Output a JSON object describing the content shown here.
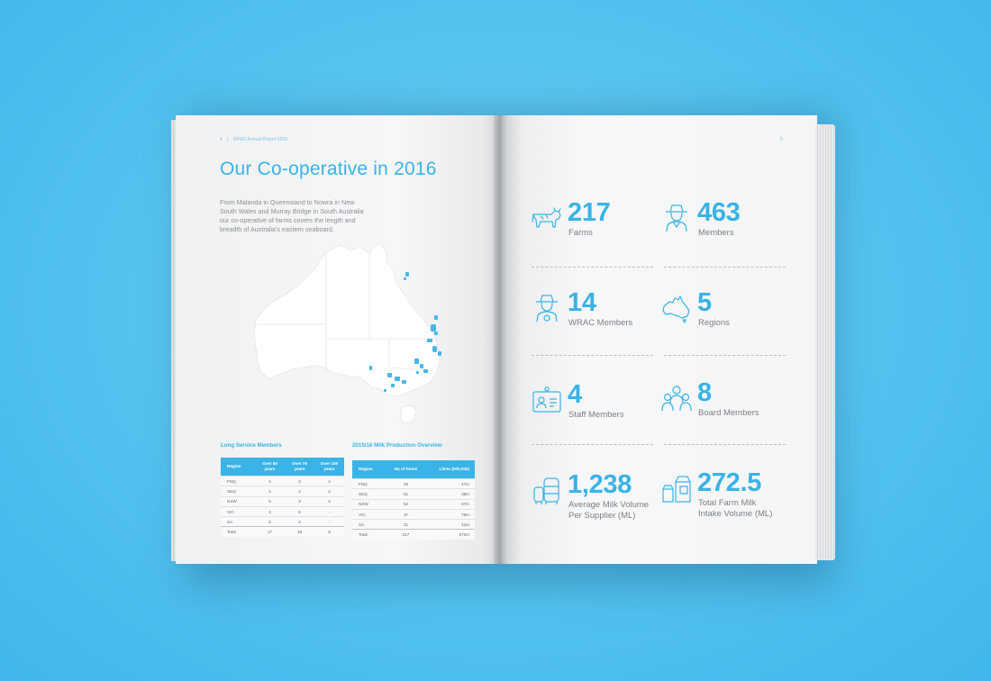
{
  "left_page": {
    "running_header": {
      "page_number": "4",
      "separator": "|",
      "report_title": "DFMC Annual Report 2016"
    },
    "title": "Our Co-operative in 2016",
    "intro": "From Malanda in Queensland to Nowra in New South Wales and Murray Bridge in South Australia our co-operative of farms covers the length and breadth of Australia's eastern seaboard.",
    "long_service": {
      "title": "Long Service Members",
      "headers": [
        "Region",
        "Over 50 years",
        "Over 75 years",
        "Over 100 years"
      ],
      "rows": [
        [
          "FNQ",
          "4",
          "3",
          "4"
        ],
        [
          "SEQ",
          "1",
          "4",
          "2"
        ],
        [
          "NSW",
          "5",
          "3",
          "3"
        ],
        [
          "VIC",
          "2",
          "6",
          "-"
        ],
        [
          "SA",
          "5",
          "2",
          "-"
        ],
        [
          "Total",
          "17",
          "18",
          "9"
        ]
      ]
    },
    "milk_production": {
      "title": "2015/16 Milk Production Overview",
      "headers": [
        "Region",
        "No of farms",
        "Litres (000,000)"
      ],
      "rows": [
        [
          "FNQ",
          "46",
          "47m"
        ],
        [
          "SEQ",
          "51",
          "38m"
        ],
        [
          "NSW",
          "52",
          "67m"
        ],
        [
          "VIC",
          "37",
          "79m"
        ],
        [
          "SA",
          "31",
          "41m"
        ],
        [
          "Total",
          "217",
          "272m"
        ]
      ]
    }
  },
  "right_page": {
    "page_number": "5",
    "stats": [
      {
        "icon": "cow-icon",
        "value": "217",
        "label": "Farms"
      },
      {
        "icon": "farmer-icon",
        "value": "463",
        "label": "Members"
      },
      {
        "icon": "wrac-member-icon",
        "value": "14",
        "label": "WRAC Members"
      },
      {
        "icon": "australia-map-icon",
        "value": "5",
        "label": "Regions"
      },
      {
        "icon": "staff-id-card-icon",
        "value": "4",
        "label": "Staff Members"
      },
      {
        "icon": "board-members-icon",
        "value": "8",
        "label": "Board Members"
      },
      {
        "icon": "milk-vat-icon",
        "value": "1,238",
        "label_line1": "Average Milk Volume",
        "label_line2": "Per Supplier (ML)"
      },
      {
        "icon": "milk-cartons-icon",
        "value": "272.5",
        "label_line1": "Total Farm Milk",
        "label_line2": "Intake Volume (ML)"
      }
    ]
  },
  "colors": {
    "accent": "#3ab3e6",
    "background": "#52c2ef",
    "page": "#f4f5f6",
    "body_text": "#8a9095"
  }
}
